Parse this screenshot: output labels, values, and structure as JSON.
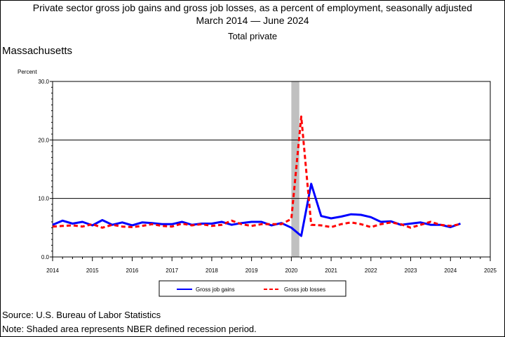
{
  "header": {
    "title_line1": "Private sector gross job gains and gross job losses, as a percent of employment, seasonally adjusted",
    "title_line2": "March 2014 — June 2024",
    "subtitle": "Total private",
    "region": "Massachusetts"
  },
  "footer": {
    "source": "Source: U.S. Bureau of Labor Statistics",
    "note": "Note: Shaded area represents NBER defined recession period."
  },
  "chart_data": {
    "type": "line",
    "ylabel": "Percent",
    "ylim": [
      0,
      30
    ],
    "yticks": [
      "0.0",
      "10.0",
      "20.0",
      "30.0"
    ],
    "xlim": [
      2014,
      2025
    ],
    "xticks": [
      "2014",
      "2015",
      "2016",
      "2017",
      "2018",
      "2019",
      "2020",
      "2021",
      "2022",
      "2023",
      "2024",
      "2025"
    ],
    "grid": "horizontal",
    "legend_position": "bottom",
    "recession": [
      2020.0,
      2020.2
    ],
    "x": [
      2014.0,
      2014.25,
      2014.5,
      2014.75,
      2015.0,
      2015.25,
      2015.5,
      2015.75,
      2016.0,
      2016.25,
      2016.5,
      2016.75,
      2017.0,
      2017.25,
      2017.5,
      2017.75,
      2018.0,
      2018.25,
      2018.5,
      2018.75,
      2019.0,
      2019.25,
      2019.5,
      2019.75,
      2020.0,
      2020.25,
      2020.5,
      2020.75,
      2021.0,
      2021.25,
      2021.5,
      2021.75,
      2022.0,
      2022.25,
      2022.5,
      2022.75,
      2023.0,
      2023.25,
      2023.5,
      2023.75,
      2024.0,
      2024.25
    ],
    "series": [
      {
        "name": "Gross job gains",
        "color": "#0000ff",
        "dash": "solid",
        "values": [
          5.5,
          6.2,
          5.7,
          6.0,
          5.4,
          6.3,
          5.5,
          5.9,
          5.4,
          5.9,
          5.8,
          5.6,
          5.6,
          6.0,
          5.5,
          5.7,
          5.7,
          6.0,
          5.5,
          5.8,
          6.0,
          6.0,
          5.4,
          5.8,
          5.0,
          3.6,
          12.5,
          7.0,
          6.6,
          6.9,
          7.3,
          7.2,
          6.8,
          6.0,
          6.1,
          5.5,
          5.7,
          5.9,
          5.5,
          5.5,
          5.1,
          5.7
        ]
      },
      {
        "name": "Gross job losses",
        "color": "#ff0000",
        "dash": "dashed",
        "values": [
          5.2,
          5.3,
          5.4,
          5.2,
          5.6,
          5.0,
          5.5,
          5.2,
          5.1,
          5.3,
          5.6,
          5.3,
          5.2,
          5.7,
          5.4,
          5.6,
          5.3,
          5.5,
          6.2,
          5.6,
          5.3,
          5.6,
          5.6,
          5.6,
          6.5,
          24.0,
          5.5,
          5.4,
          5.1,
          5.6,
          5.9,
          5.6,
          5.1,
          5.6,
          5.9,
          5.6,
          5.0,
          5.5,
          6.0,
          5.5,
          5.3,
          5.6
        ]
      }
    ]
  }
}
